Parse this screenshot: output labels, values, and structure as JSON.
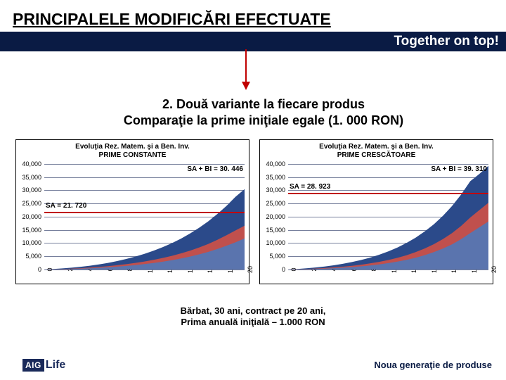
{
  "title": "PRINCIPALELE MODIFICĂRI EFECTUATE",
  "banner": {
    "text": "Together on top!",
    "bg": "#0a1b44",
    "fg": "#ffffff"
  },
  "arrow_color": "#c00000",
  "subtitle": {
    "line1": "2. Două variante la fiecare produs",
    "line2": "Comparaţie la prime iniţiale egale (1. 000 RON)"
  },
  "caption": {
    "line1": "Bărbat, 30 ani, contract pe 20 ani,",
    "line2": "Prima anuală iniţială – 1.000 RON"
  },
  "logo": {
    "box_text": "AIG",
    "box_bg": "#1a2a5a",
    "side_text": "Life",
    "side_color": "#1a2a5a"
  },
  "footer": {
    "text": "Noua generaţie de produse",
    "color": "#0a1b44"
  },
  "axis": {
    "y_ticks": [
      0,
      5000,
      10000,
      15000,
      20000,
      25000,
      30000,
      35000,
      40000
    ],
    "y_labels": [
      "0",
      "5,000",
      "10,000",
      "15,000",
      "20,000",
      "25,000",
      "30,000",
      "35,000",
      "40,000"
    ],
    "y_max": 40000,
    "x_ticks": [
      0,
      2,
      4,
      6,
      8,
      10,
      12,
      14,
      16,
      18,
      20
    ],
    "x_max": 20,
    "grid_color": "#1a2a5a"
  },
  "charts": [
    {
      "title1": "Evoluţia Rez. Matem. şi a Ben. Inv.",
      "title2": "PRIME CONSTANTE",
      "series_top": [
        0,
        190,
        420,
        700,
        1040,
        1450,
        1940,
        2520,
        3200,
        3990,
        4900,
        5940,
        7120,
        8460,
        9980,
        11690,
        13620,
        15790,
        18230,
        20980,
        24080,
        27560,
        30446
      ],
      "series_red": [
        0,
        90,
        200,
        340,
        510,
        720,
        970,
        1270,
        1620,
        2030,
        2500,
        3040,
        3660,
        4370,
        5180,
        6100,
        7150,
        8340,
        9690,
        11220,
        12950,
        14800,
        16600
      ],
      "series_bot": [
        0,
        60,
        130,
        220,
        330,
        470,
        640,
        840,
        1080,
        1360,
        1680,
        2050,
        2480,
        2970,
        3530,
        4170,
        4900,
        5730,
        6680,
        7760,
        8990,
        10300,
        11800
      ],
      "colors": {
        "top": "#2b4a8a",
        "red": "#c0504d",
        "bot": "#5a74ae"
      },
      "sa_label": "SA = 21. 720",
      "sa_value": 21720,
      "right_label": "SA + BI = 30. 446",
      "sa_line_color": "#c00000"
    },
    {
      "title1": "Evoluţia Rez. Matem. şi a Ben. Inv.",
      "title2": "PRIME CRESCĂTOARE",
      "series_top": [
        0,
        210,
        460,
        770,
        1150,
        1610,
        2160,
        2820,
        3600,
        4520,
        5600,
        6870,
        8350,
        10080,
        12090,
        14430,
        17160,
        20340,
        24050,
        28390,
        33470,
        36200,
        39310
      ],
      "series_red": [
        0,
        100,
        220,
        370,
        560,
        790,
        1070,
        1410,
        1820,
        2310,
        2900,
        3600,
        4430,
        5420,
        6590,
        7970,
        9600,
        11530,
        13810,
        16510,
        19700,
        22500,
        25300
      ],
      "series_bot": [
        0,
        60,
        140,
        240,
        360,
        510,
        700,
        930,
        1210,
        1540,
        1940,
        2420,
        2990,
        3670,
        4480,
        5440,
        6580,
        7940,
        9560,
        11490,
        13790,
        16000,
        18200
      ],
      "colors": {
        "top": "#2b4a8a",
        "red": "#c0504d",
        "bot": "#5a74ae"
      },
      "sa_label": "SA = 28. 923",
      "sa_value": 28923,
      "right_label": "SA + BI = 39. 310",
      "sa_line_color": "#c00000"
    }
  ]
}
